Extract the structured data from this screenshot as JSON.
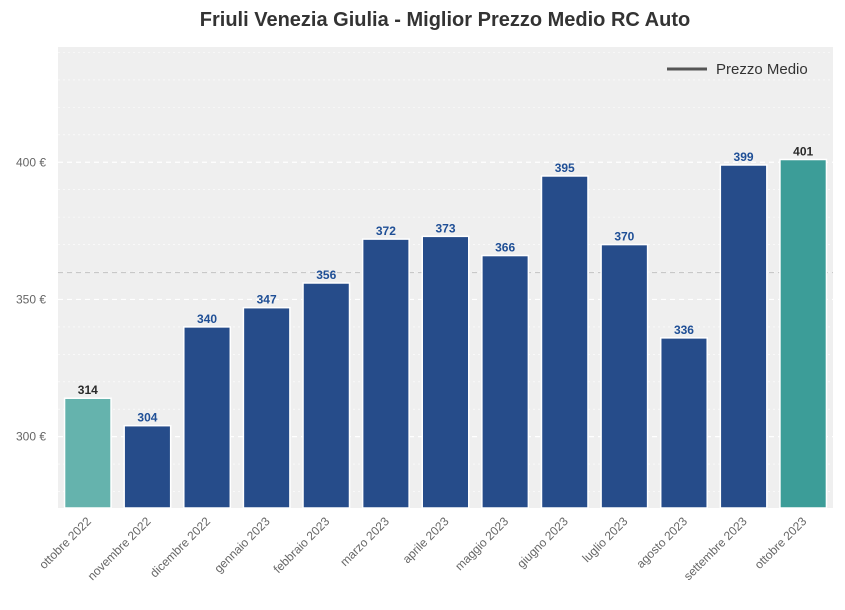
{
  "chart_data": {
    "type": "bar",
    "title": "Friuli Venezia Giulia - Miglior Prezzo Medio RC Auto",
    "xlabel": "",
    "ylabel": "",
    "categories": [
      "ottobre 2022",
      "novembre 2022",
      "dicembre 2022",
      "gennaio 2023",
      "febbraio 2023",
      "marzo 2023",
      "aprile 2023",
      "maggio 2023",
      "giugno 2023",
      "luglio 2023",
      "agosto 2023",
      "settembre 2023",
      "ottobre 2023"
    ],
    "values": [
      314,
      304,
      340,
      347,
      356,
      372,
      373,
      366,
      395,
      370,
      336,
      399,
      401
    ],
    "value_labels": [
      "314",
      "304",
      "340",
      "347",
      "356",
      "372",
      "373",
      "366",
      "395",
      "370",
      "336",
      "399",
      "401"
    ],
    "ylim": [
      274,
      442
    ],
    "yticks": [
      300,
      350,
      400
    ],
    "ytick_labels": [
      "300 €",
      "350 €",
      "400 €"
    ],
    "average_line": {
      "label": "Prezzo Medio",
      "value": 359.8
    },
    "legend": {
      "position": "top-right",
      "entries": [
        "Prezzo Medio"
      ]
    },
    "grid": true,
    "colors": {
      "bar": "#264c8a",
      "first_bar": "#65b3ad",
      "last_bar": "#3c9d98",
      "label_default": "#1f4f96",
      "label_highlight": "#2a2a2a",
      "background": "#efefef",
      "average_line": "#c8c8c8"
    }
  }
}
